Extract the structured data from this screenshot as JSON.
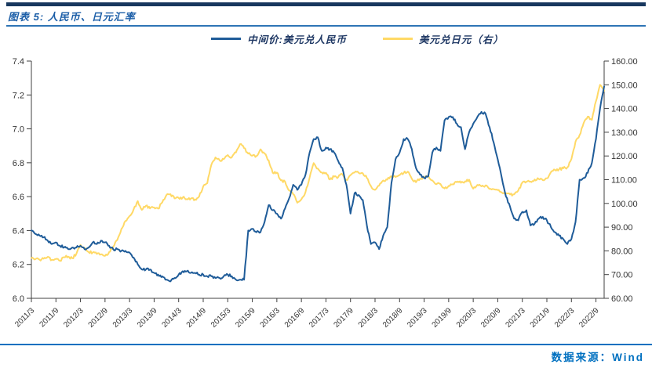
{
  "header": {
    "title": "图表 5: 人民币、日元汇率"
  },
  "legend": [
    {
      "id": "usdcny",
      "label": "中间价:美元兑人民币",
      "color": "#1F5C99"
    },
    {
      "id": "usdjpy",
      "label": "美元兑日元（右）",
      "color": "#FFD966"
    }
  ],
  "footer": {
    "source_label": "数据来源：Wind"
  },
  "colors": {
    "top_bar": "#17375E",
    "title_text": "#1D5FA8",
    "title_rule": "#2E74B5",
    "footer_accent": "#0070C0",
    "axis": "#404040",
    "tick_text": "#333333",
    "series_cny": "#1F5C99",
    "series_jpy": "#FFD966"
  },
  "chart_data": {
    "type": "line",
    "title": "人民币、日元汇率",
    "x_start": "2011/3",
    "x_step_months": 1,
    "x_tick_labels": [
      "2011/3",
      "2011/9",
      "2012/3",
      "2012/9",
      "2013/3",
      "2013/9",
      "2014/3",
      "2014/9",
      "2015/3",
      "2015/9",
      "2016/3",
      "2016/9",
      "2017/3",
      "2017/9",
      "2018/3",
      "2018/9",
      "2019/3",
      "2019/9",
      "2020/3",
      "2020/9",
      "2021/3",
      "2021/9",
      "2022/3",
      "2022/9"
    ],
    "x_ticks_every_n_points": 6,
    "left_axis": {
      "min": 6.0,
      "max": 7.4,
      "ticks": [
        "7.4",
        "7.2",
        "7.0",
        "6.8",
        "6.6",
        "6.4",
        "6.2",
        "6.0"
      ]
    },
    "right_axis": {
      "min": 60,
      "max": 160,
      "ticks": [
        "160.00",
        "150.00",
        "140.00",
        "130.00",
        "120.00",
        "110.00",
        "100.00",
        "90.00",
        "80.00",
        "70.00",
        "60.00"
      ]
    },
    "grid": false,
    "legend_position": "top",
    "series": [
      {
        "id": "usdcny",
        "name": "中间价:美元兑人民币",
        "axis": "left",
        "color": "#1F5C99",
        "values": [
          6.4,
          6.38,
          6.37,
          6.36,
          6.34,
          6.32,
          6.33,
          6.31,
          6.3,
          6.29,
          6.3,
          6.3,
          6.31,
          6.29,
          6.3,
          6.33,
          6.32,
          6.34,
          6.33,
          6.31,
          6.29,
          6.29,
          6.28,
          6.28,
          6.27,
          6.24,
          6.2,
          6.17,
          6.17,
          6.17,
          6.15,
          6.14,
          6.13,
          6.11,
          6.1,
          6.12,
          6.14,
          6.16,
          6.16,
          6.15,
          6.15,
          6.14,
          6.14,
          6.13,
          6.13,
          6.12,
          6.12,
          6.13,
          6.14,
          6.13,
          6.11,
          6.11,
          6.11,
          6.4,
          6.41,
          6.39,
          6.39,
          6.45,
          6.55,
          6.52,
          6.5,
          6.47,
          6.53,
          6.59,
          6.67,
          6.64,
          6.67,
          6.73,
          6.86,
          6.94,
          6.95,
          6.87,
          6.89,
          6.88,
          6.86,
          6.81,
          6.77,
          6.67,
          6.5,
          6.62,
          6.61,
          6.58,
          6.43,
          6.32,
          6.33,
          6.29,
          6.37,
          6.42,
          6.68,
          6.82,
          6.86,
          6.94,
          6.94,
          6.88,
          6.77,
          6.73,
          6.71,
          6.72,
          6.86,
          6.89,
          6.87,
          7.05,
          7.07,
          7.07,
          7.03,
          7.01,
          6.88,
          6.98,
          7.03,
          7.07,
          7.1,
          7.09,
          7.01,
          6.92,
          6.82,
          6.71,
          6.6,
          6.54,
          6.47,
          6.46,
          6.51,
          6.52,
          6.43,
          6.44,
          6.47,
          6.48,
          6.46,
          6.42,
          6.39,
          6.37,
          6.35,
          6.32,
          6.35,
          6.45,
          6.7,
          6.71,
          6.74,
          6.8,
          6.94,
          7.12,
          7.25
        ]
      },
      {
        "id": "usdjpy",
        "name": "美元兑日元（右）",
        "axis": "right",
        "color": "#FFD966",
        "values": [
          77.0,
          76.5,
          76.3,
          76.7,
          77.5,
          76.2,
          76.6,
          75.8,
          77.3,
          77.6,
          76.9,
          78.8,
          82.5,
          81.3,
          79.5,
          79.3,
          78.7,
          78.5,
          77.9,
          79.5,
          81.7,
          84.6,
          89.2,
          92.6,
          94.7,
          97.6,
          101.0,
          97.3,
          99.0,
          97.9,
          98.3,
          97.8,
          100.5,
          103.5,
          103.9,
          102.1,
          102.3,
          102.5,
          101.8,
          102.1,
          101.7,
          102.9,
          107.2,
          108.5,
          116.3,
          119.4,
          118.2,
          118.6,
          120.4,
          119.5,
          121.5,
          125.0,
          123.3,
          121.0,
          120.1,
          120.0,
          122.8,
          121.0,
          118.2,
          112.9,
          113.0,
          109.7,
          109.2,
          105.4,
          103.9,
          100.3,
          101.7,
          104.8,
          110.9,
          117.0,
          114.7,
          113.1,
          112.9,
          110.1,
          111.3,
          111.1,
          112.3,
          109.9,
          111.9,
          113.0,
          112.9,
          112.7,
          110.7,
          107.3,
          105.7,
          107.5,
          109.7,
          110.0,
          111.4,
          111.1,
          111.9,
          112.8,
          113.4,
          110.4,
          108.9,
          110.4,
          110.8,
          111.6,
          109.7,
          108.1,
          108.2,
          106.3,
          107.4,
          108.1,
          108.9,
          108.7,
          109.3,
          110.0,
          106.2,
          107.8,
          107.2,
          107.6,
          106.1,
          106.0,
          105.6,
          104.6,
          104.3,
          103.8,
          103.8,
          105.4,
          108.8,
          109.1,
          109.2,
          110.1,
          110.3,
          109.8,
          110.6,
          113.2,
          114.1,
          114.4,
          114.8,
          115.2,
          118.7,
          126.0,
          128.8,
          133.9,
          136.6,
          135.2,
          143.1,
          150.0,
          147.5
        ]
      }
    ]
  }
}
